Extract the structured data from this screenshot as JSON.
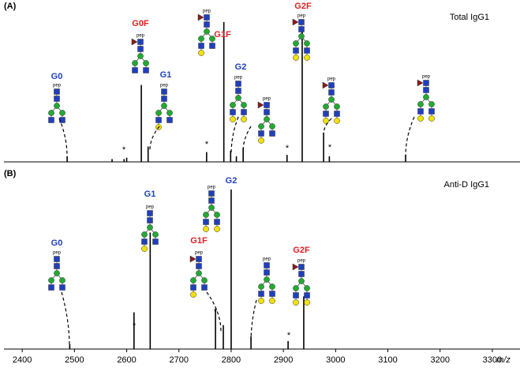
{
  "chart_data": [
    {
      "type": "stick",
      "tag": "(A)",
      "title": "Total IgG1",
      "color": "#000000",
      "xlim": [
        2365,
        3353
      ],
      "ylim": [
        0,
        100
      ],
      "x": [
        2486,
        2572,
        2595,
        2600,
        2628,
        2641,
        2753,
        2786,
        2799,
        2810,
        2823,
        2907,
        2936,
        2977,
        2988,
        3134
      ],
      "values": [
        4,
        2,
        2,
        3,
        55,
        11,
        7,
        100,
        8,
        4,
        10,
        5,
        95,
        21,
        4,
        5
      ],
      "annotations": [
        {
          "text": "G0",
          "color": "#1f3fbf",
          "pep": "pep"
        },
        {
          "text": "G0F",
          "color": "#e02020",
          "pep": "pep"
        },
        {
          "text": "G1",
          "color": "#1f3fbf",
          "pep": "pep"
        },
        {
          "text": "G1F",
          "color": "#e02020",
          "pep": "pep"
        },
        {
          "text": "G2",
          "color": "#1f3fbf",
          "pep": "pep"
        },
        {
          "pep": "pep"
        },
        {
          "text": "G2F",
          "color": "#e02020",
          "pep": "pep"
        },
        {
          "pep": "pep"
        },
        {
          "pep": "pep"
        }
      ],
      "stars": [
        "*",
        "*",
        "*",
        "*"
      ]
    },
    {
      "type": "stick",
      "tag": "(B)",
      "title": "Anti-D IgG1",
      "color": "#000000",
      "xlim": [
        2365,
        3353
      ],
      "ylim": [
        0,
        100
      ],
      "xticks": [
        2400,
        2500,
        2600,
        2700,
        2800,
        2900,
        3000,
        3100,
        3200,
        3300
      ],
      "xlabel": "m/z",
      "x": [
        2491,
        2614,
        2645,
        2770,
        2785,
        2800,
        2838,
        2909,
        2939
      ],
      "values": [
        3,
        23,
        73,
        25,
        15,
        100,
        8,
        5,
        33
      ],
      "annotations": [
        {
          "text": "G0",
          "color": "#1f3fbf",
          "pep": "pep"
        },
        {
          "text": "G1",
          "color": "#1f3fbf",
          "pep": "pep"
        },
        {
          "text": "G2",
          "color": "#1f3fbf",
          "pep": "pep"
        },
        {
          "text": "G1F",
          "color": "#e02020",
          "pep": "pep"
        },
        {
          "pep": "pep"
        },
        {
          "text": "G2F",
          "color": "#e02020",
          "pep": "pep"
        }
      ],
      "stars": [
        "*",
        "*",
        "*"
      ]
    }
  ]
}
